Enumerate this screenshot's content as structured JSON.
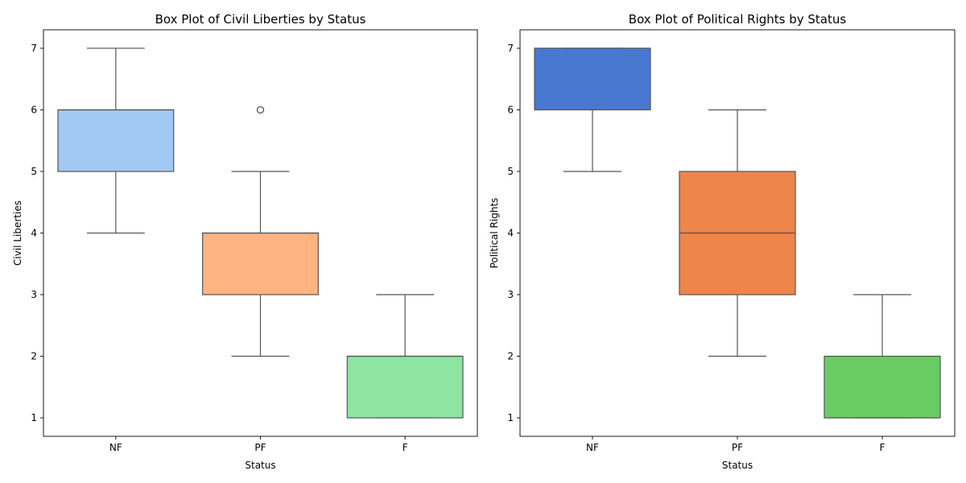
{
  "chart_data": [
    {
      "type": "box",
      "title": "Box Plot of Civil Liberties by Status",
      "xlabel": "Status",
      "ylabel": "Civil Liberties",
      "categories": [
        "NF",
        "PF",
        "F"
      ],
      "yticks": [
        1,
        2,
        3,
        4,
        5,
        6,
        7
      ],
      "ylim": [
        0.7,
        7.3
      ],
      "colors": [
        "#a1c9f4",
        "#ffb482",
        "#8de5a1"
      ],
      "boxes": [
        {
          "category": "NF",
          "whisker_low": 4,
          "q1": 5,
          "median": 6,
          "q3": 6,
          "whisker_high": 7,
          "outliers": []
        },
        {
          "category": "PF",
          "whisker_low": 2,
          "q1": 3,
          "median": 4,
          "q3": 4,
          "whisker_high": 5,
          "outliers": [
            6
          ]
        },
        {
          "category": "F",
          "whisker_low": 1,
          "q1": 1,
          "median": 2,
          "q3": 2,
          "whisker_high": 3,
          "outliers": []
        }
      ]
    },
    {
      "type": "box",
      "title": "Box Plot of Political Rights by Status",
      "xlabel": "Status",
      "ylabel": "Political Rights",
      "categories": [
        "NF",
        "PF",
        "F"
      ],
      "yticks": [
        1,
        2,
        3,
        4,
        5,
        6,
        7
      ],
      "ylim": [
        0.7,
        7.3
      ],
      "colors": [
        "#4878d0",
        "#ee854a",
        "#6acc64"
      ],
      "boxes": [
        {
          "category": "NF",
          "whisker_low": 5,
          "q1": 6,
          "median": 7,
          "q3": 7,
          "whisker_high": 7,
          "outliers": []
        },
        {
          "category": "PF",
          "whisker_low": 2,
          "q1": 3,
          "median": 4,
          "q3": 5,
          "whisker_high": 6,
          "outliers": []
        },
        {
          "category": "F",
          "whisker_low": 1,
          "q1": 1,
          "median": 1,
          "q3": 2,
          "whisker_high": 3,
          "outliers": []
        }
      ]
    }
  ]
}
